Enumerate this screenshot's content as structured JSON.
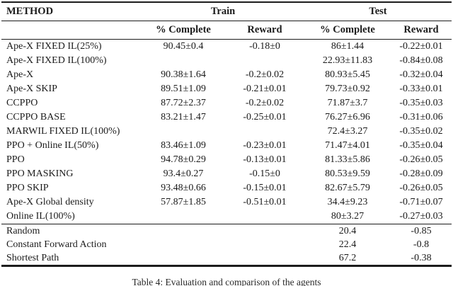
{
  "page": {
    "background": "#ffffff",
    "text_color": "#1b1b1b",
    "rule_color": "#1c1c1c"
  },
  "table": {
    "header": {
      "method": "METHOD",
      "train_group": "Train",
      "test_group": "Test"
    },
    "subheader": [
      "% Complete",
      "Reward",
      "% Complete",
      "Reward"
    ],
    "rows": [
      {
        "method": "Ape-X FIXED IL(25%)",
        "train_complete": "90.45±0.4",
        "train_reward": "-0.18±0",
        "test_complete": "86±1.44",
        "test_reward": "-0.22±0.01"
      },
      {
        "method": "Ape-X FIXED IL(100%)",
        "train_complete": "",
        "train_reward": "",
        "test_complete": "22.93±11.83",
        "test_reward": "-0.84±0.08"
      },
      {
        "method": "Ape-X",
        "train_complete": "90.38±1.64",
        "train_reward": "-0.2±0.02",
        "test_complete": "80.93±5.45",
        "test_reward": "-0.32±0.04"
      },
      {
        "method": "Ape-X SKIP",
        "train_complete": "89.51±1.09",
        "train_reward": "-0.21±0.01",
        "test_complete": "79.73±0.92",
        "test_reward": "-0.33±0.01"
      },
      {
        "method": "CCPPO",
        "train_complete": "87.72±2.37",
        "train_reward": "-0.2±0.02",
        "test_complete": "71.87±3.7",
        "test_reward": "-0.35±0.03"
      },
      {
        "method": "CCPPO BASE",
        "train_complete": "83.21±1.47",
        "train_reward": "-0.25±0.01",
        "test_complete": "76.27±6.96",
        "test_reward": "-0.31±0.06"
      },
      {
        "method": "MARWIL FIXED IL(100%)",
        "train_complete": "",
        "train_reward": "",
        "test_complete": "72.4±3.27",
        "test_reward": "-0.35±0.02"
      },
      {
        "method": "PPO + Online IL(50%)",
        "train_complete": "83.46±1.09",
        "train_reward": "-0.23±0.01",
        "test_complete": "71.47±4.01",
        "test_reward": "-0.35±0.04"
      },
      {
        "method": "PPO",
        "train_complete": "94.78±0.29",
        "train_reward": "-0.13±0.01",
        "test_complete": "81.33±5.86",
        "test_reward": "-0.26±0.05"
      },
      {
        "method": "PPO MASKING",
        "train_complete": "93.4±0.27",
        "train_reward": "-0.15±0",
        "test_complete": "80.53±9.59",
        "test_reward": "-0.28±0.09"
      },
      {
        "method": "PPO SKIP",
        "train_complete": "93.48±0.66",
        "train_reward": "-0.15±0.01",
        "test_complete": "82.67±5.79",
        "test_reward": "-0.26±0.05"
      },
      {
        "method": "Ape-X Global density",
        "train_complete": "57.87±1.85",
        "train_reward": "-0.51±0.01",
        "test_complete": "34.4±9.23",
        "test_reward": "-0.71±0.07"
      },
      {
        "method": "Online IL(100%)",
        "train_complete": "",
        "train_reward": "",
        "test_complete": "80±3.27",
        "test_reward": "-0.27±0.03"
      }
    ],
    "baseline_rows": [
      {
        "method": "Random",
        "train_complete": "",
        "train_reward": "",
        "test_complete": "20.4",
        "test_reward": "-0.85"
      },
      {
        "method": "Constant Forward Action",
        "train_complete": "",
        "train_reward": "",
        "test_complete": "22.4",
        "test_reward": "-0.8"
      },
      {
        "method": "Shortest Path",
        "train_complete": "",
        "train_reward": "",
        "test_complete": "67.2",
        "test_reward": "-0.38"
      }
    ]
  },
  "caption": "Table 4: Evaluation and comparison of the agents"
}
